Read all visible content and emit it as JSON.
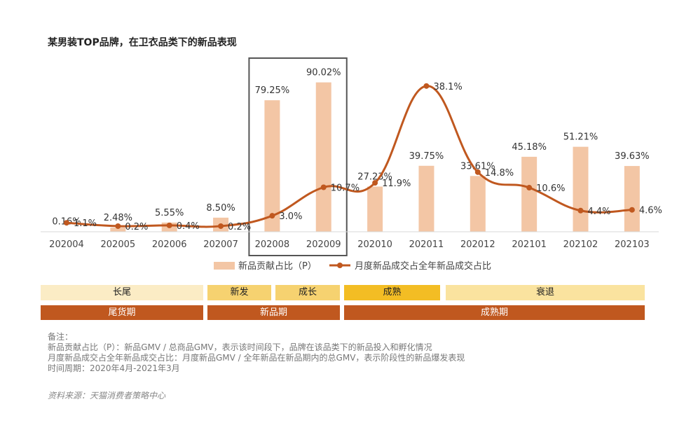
{
  "title": "某男装TOP品牌，在卫衣品类下的新品表现",
  "chart_data": {
    "type": "bar+line",
    "categories": [
      "202004",
      "202005",
      "202006",
      "202007",
      "202008",
      "202009",
      "202010",
      "202011",
      "202012",
      "202101",
      "202102",
      "202103"
    ],
    "series": [
      {
        "name": "新品贡献占比（P）",
        "type": "bar",
        "values": [
          0.16,
          2.48,
          5.55,
          8.5,
          79.25,
          90.02,
          27.23,
          39.75,
          33.61,
          45.18,
          51.21,
          39.63
        ],
        "labels": [
          "0.16%",
          "2.48%",
          "5.55%",
          "8.50%",
          "79.25%",
          "90.02%",
          "27.23%",
          "39.75%",
          "33.61%",
          "45.18%",
          "51.21%",
          "39.63%"
        ],
        "color": "#f3c6a5"
      },
      {
        "name": "月度新品成交占全年新品成交占比",
        "type": "line",
        "values": [
          1.1,
          0.2,
          0.4,
          0.2,
          3.0,
          10.7,
          11.9,
          38.1,
          14.8,
          10.6,
          4.4,
          4.6
        ],
        "labels": [
          "1.1%",
          "0.2%",
          "0.4%",
          "0.2%",
          "3.0%",
          "10.7%",
          "11.9%",
          "38.1%",
          "14.8%",
          "10.6%",
          "4.4%",
          "4.6%"
        ],
        "color": "#c0581f"
      }
    ],
    "highlight": [
      "202008",
      "202009"
    ],
    "legend": "bottom",
    "grid": false
  },
  "phases": {
    "stages": [
      {
        "label": "长尾",
        "color": "#fbecc5"
      },
      {
        "label": "新发",
        "color": "#f6d270"
      },
      {
        "label": "成长",
        "color": "#f6d270"
      },
      {
        "label": "成熟",
        "color": "#f3bd24"
      },
      {
        "label": "衰退",
        "color": "#fae39f"
      }
    ],
    "periods": [
      {
        "label": "尾货期"
      },
      {
        "label": "新品期"
      },
      {
        "label": "成熟期"
      }
    ]
  },
  "notes": {
    "heading": "备注：",
    "line1": "新品贡献占比（P）：新品GMV / 总商品GMV，表示该时间段下，品牌在该品类下的新品投入和孵化情况",
    "line2": "月度新品成交占全年新品成交占比：月度新品GMV / 全年新品在新品期内的总GMV，表示阶段性的新品爆发表现",
    "line3": "时间周期：2020年4月-2021年3月"
  },
  "source": "资料来源：天猫消费者策略中心"
}
